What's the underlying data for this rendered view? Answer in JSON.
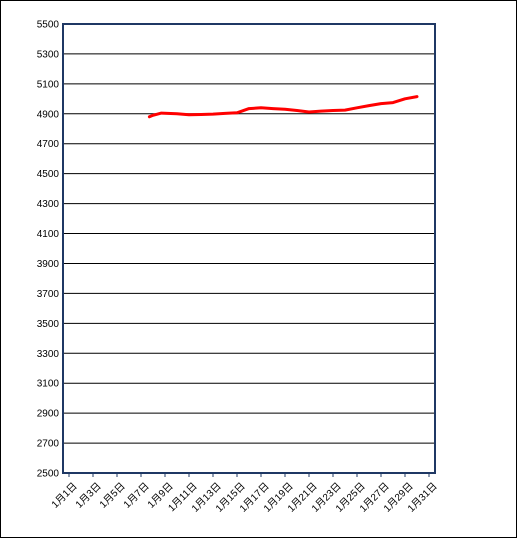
{
  "chart_data": {
    "type": "line",
    "title": "",
    "xlabel": "",
    "ylabel": "",
    "ylim": [
      2500,
      5500
    ],
    "y_ticks": [
      2500,
      2700,
      2900,
      3100,
      3300,
      3500,
      3700,
      3900,
      4100,
      4300,
      4500,
      4700,
      4900,
      5100,
      5300,
      5500
    ],
    "x_tick_labels": [
      "1月1日",
      "1月3日",
      "1月5日",
      "1月7日",
      "1月9日",
      "1月11日",
      "1月13日",
      "1月15日",
      "1月17日",
      "1月19日",
      "1月21日",
      "1月23日",
      "1月25日",
      "1月27日",
      "1月29日",
      "1月31日"
    ],
    "x_days": [
      1,
      3,
      5,
      7,
      9,
      11,
      13,
      15,
      17,
      19,
      21,
      23,
      25,
      27,
      29,
      31
    ],
    "grid": true,
    "series": [
      {
        "color": "#ff0000",
        "points": [
          {
            "day": 7.7,
            "value": 4880
          },
          {
            "day": 8,
            "value": 4890
          },
          {
            "day": 8.7,
            "value": 4905
          },
          {
            "day": 10,
            "value": 4900
          },
          {
            "day": 11,
            "value": 4893
          },
          {
            "day": 12,
            "value": 4895
          },
          {
            "day": 13,
            "value": 4898
          },
          {
            "day": 14,
            "value": 4903
          },
          {
            "day": 15,
            "value": 4907
          },
          {
            "day": 16,
            "value": 4935
          },
          {
            "day": 17,
            "value": 4940
          },
          {
            "day": 18,
            "value": 4935
          },
          {
            "day": 19,
            "value": 4930
          },
          {
            "day": 20,
            "value": 4922
          },
          {
            "day": 21,
            "value": 4912
          },
          {
            "day": 22,
            "value": 4918
          },
          {
            "day": 23,
            "value": 4922
          },
          {
            "day": 24,
            "value": 4925
          },
          {
            "day": 25,
            "value": 4940
          },
          {
            "day": 26,
            "value": 4955
          },
          {
            "day": 27,
            "value": 4968
          },
          {
            "day": 28,
            "value": 4975
          },
          {
            "day": 29,
            "value": 5000
          },
          {
            "day": 30,
            "value": 5015
          }
        ]
      }
    ]
  }
}
